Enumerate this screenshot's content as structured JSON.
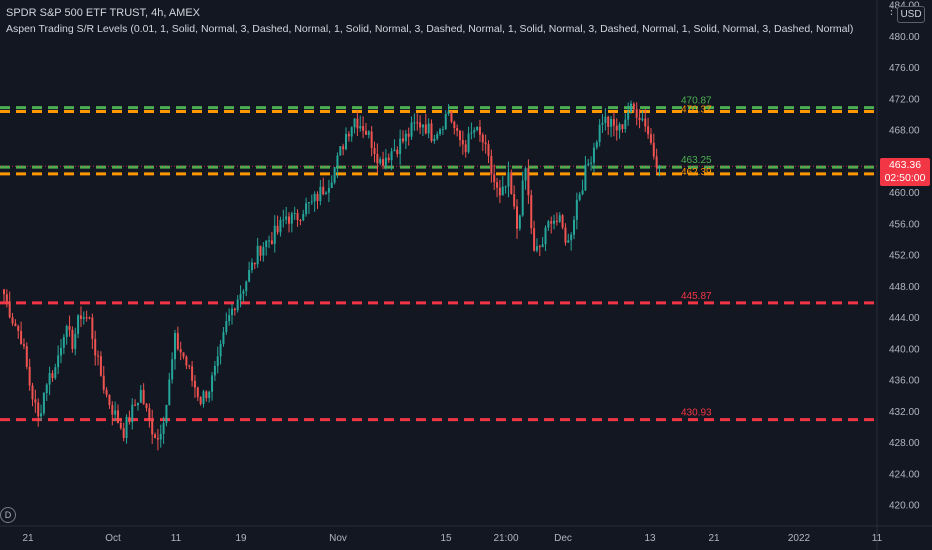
{
  "legend": {
    "symbol_line": "SPDR S&P 500 ETF TRUST, 4h, AMEX",
    "indicator_line": "Aspen Trading S/R Levels (0.01, 1, Solid, Normal, 3, Dashed, Normal, 1, Solid, Normal, 3, Dashed, Normal, 1, Solid, Normal, 3, Dashed, Normal, 1, Solid, Normal, 3, Dashed, Normal)"
  },
  "toolbar": {
    "currency": "USD"
  },
  "price_tag": {
    "price": "463.36",
    "countdown": "02:50:00"
  },
  "logo_glyph": "D",
  "colors": {
    "background": "#131722",
    "up_candle": "#26a69a",
    "down_candle": "#ef5350",
    "level_red": "#f23645",
    "level_orange": "#ff9800",
    "level_green": "#4caf50",
    "axis_text": "#b2b5be"
  },
  "chart_data": {
    "type": "candlestick",
    "y_axis": {
      "ticks": [
        "420.00",
        "424.00",
        "428.00",
        "432.00",
        "436.00",
        "440.00",
        "444.00",
        "448.00",
        "452.00",
        "456.00",
        "460.00",
        "464.00",
        "468.00",
        "472.00",
        "476.00",
        "480.00",
        "484.00"
      ],
      "range": [
        418.5,
        485.5
      ]
    },
    "x_axis": {
      "ticks": [
        "21",
        "Oct",
        "11",
        "19",
        "Nov",
        "15",
        "21:00",
        "Dec",
        "13",
        "21",
        "2022",
        "11"
      ]
    },
    "levels": [
      {
        "label": "470.87",
        "value": 470.87,
        "style": "dashed",
        "color": "#4caf50"
      },
      {
        "label": "470.37",
        "value": 470.37,
        "style": "dashed",
        "color": "#ff9800"
      },
      {
        "label": "463.25",
        "value": 463.25,
        "style": "dashed",
        "color": "#4caf50"
      },
      {
        "label": "462.39",
        "value": 462.39,
        "style": "dashed",
        "color": "#ff9800"
      },
      {
        "label": "445.87",
        "value": 445.87,
        "style": "dashed",
        "color": "#f23645"
      },
      {
        "label": "430.93",
        "value": 430.93,
        "style": "dashed",
        "color": "#f23645"
      }
    ],
    "anchors": [
      [
        0,
        447.0
      ],
      [
        3,
        443.8
      ],
      [
        6,
        441.5
      ],
      [
        9,
        435.5
      ],
      [
        12,
        431.0
      ],
      [
        15,
        436.0
      ],
      [
        18,
        437.5
      ],
      [
        21,
        442.5
      ],
      [
        24,
        440.8
      ],
      [
        27,
        444.5
      ],
      [
        30,
        443.6
      ],
      [
        33,
        438.0
      ],
      [
        36,
        434.0
      ],
      [
        39,
        431.5
      ],
      [
        42,
        429.5
      ],
      [
        45,
        432.0
      ],
      [
        48,
        434.5
      ],
      [
        51,
        430.5
      ],
      [
        54,
        428.5
      ],
      [
        57,
        433.0
      ],
      [
        60,
        441.0
      ],
      [
        63,
        439.0
      ],
      [
        66,
        436.0
      ],
      [
        69,
        433.5
      ],
      [
        72,
        435.0
      ],
      [
        75,
        438.0
      ],
      [
        78,
        443.0
      ],
      [
        81,
        446.0
      ],
      [
        84,
        448.0
      ],
      [
        87,
        450.5
      ],
      [
        90,
        453.0
      ],
      [
        93,
        454.0
      ],
      [
        96,
        455.0
      ],
      [
        99,
        457.0
      ],
      [
        102,
        456.5
      ],
      [
        105,
        458.0
      ],
      [
        108,
        458.5
      ],
      [
        111,
        460.0
      ],
      [
        114,
        461.5
      ],
      [
        117,
        464.0
      ],
      [
        120,
        467.5
      ],
      [
        123,
        469.5
      ],
      [
        126,
        468.5
      ],
      [
        129,
        466.5
      ],
      [
        132,
        464.0
      ],
      [
        135,
        465.0
      ],
      [
        138,
        466.0
      ],
      [
        141,
        467.0
      ],
      [
        144,
        468.5
      ],
      [
        147,
        469.0
      ],
      [
        150,
        467.5
      ],
      [
        153,
        468.5
      ],
      [
        156,
        470.5
      ],
      [
        159,
        467.0
      ],
      [
        162,
        466.0
      ],
      [
        165,
        468.0
      ],
      [
        168,
        466.5
      ],
      [
        171,
        462.5
      ],
      [
        174,
        459.0
      ],
      [
        177,
        461.5
      ],
      [
        180,
        455.5
      ],
      [
        183,
        463.0
      ],
      [
        186,
        452.0
      ],
      [
        189,
        453.5
      ],
      [
        192,
        457.0
      ],
      [
        195,
        456.0
      ],
      [
        198,
        453.5
      ],
      [
        201,
        459.0
      ],
      [
        207,
        466.0
      ],
      [
        210,
        469.5
      ],
      [
        213,
        468.5
      ],
      [
        216,
        468.0
      ],
      [
        219,
        470.5
      ],
      [
        222,
        470.5
      ],
      [
        225,
        469.0
      ],
      [
        228,
        465.0
      ],
      [
        230,
        463.4
      ]
    ],
    "last_price": 463.36
  }
}
